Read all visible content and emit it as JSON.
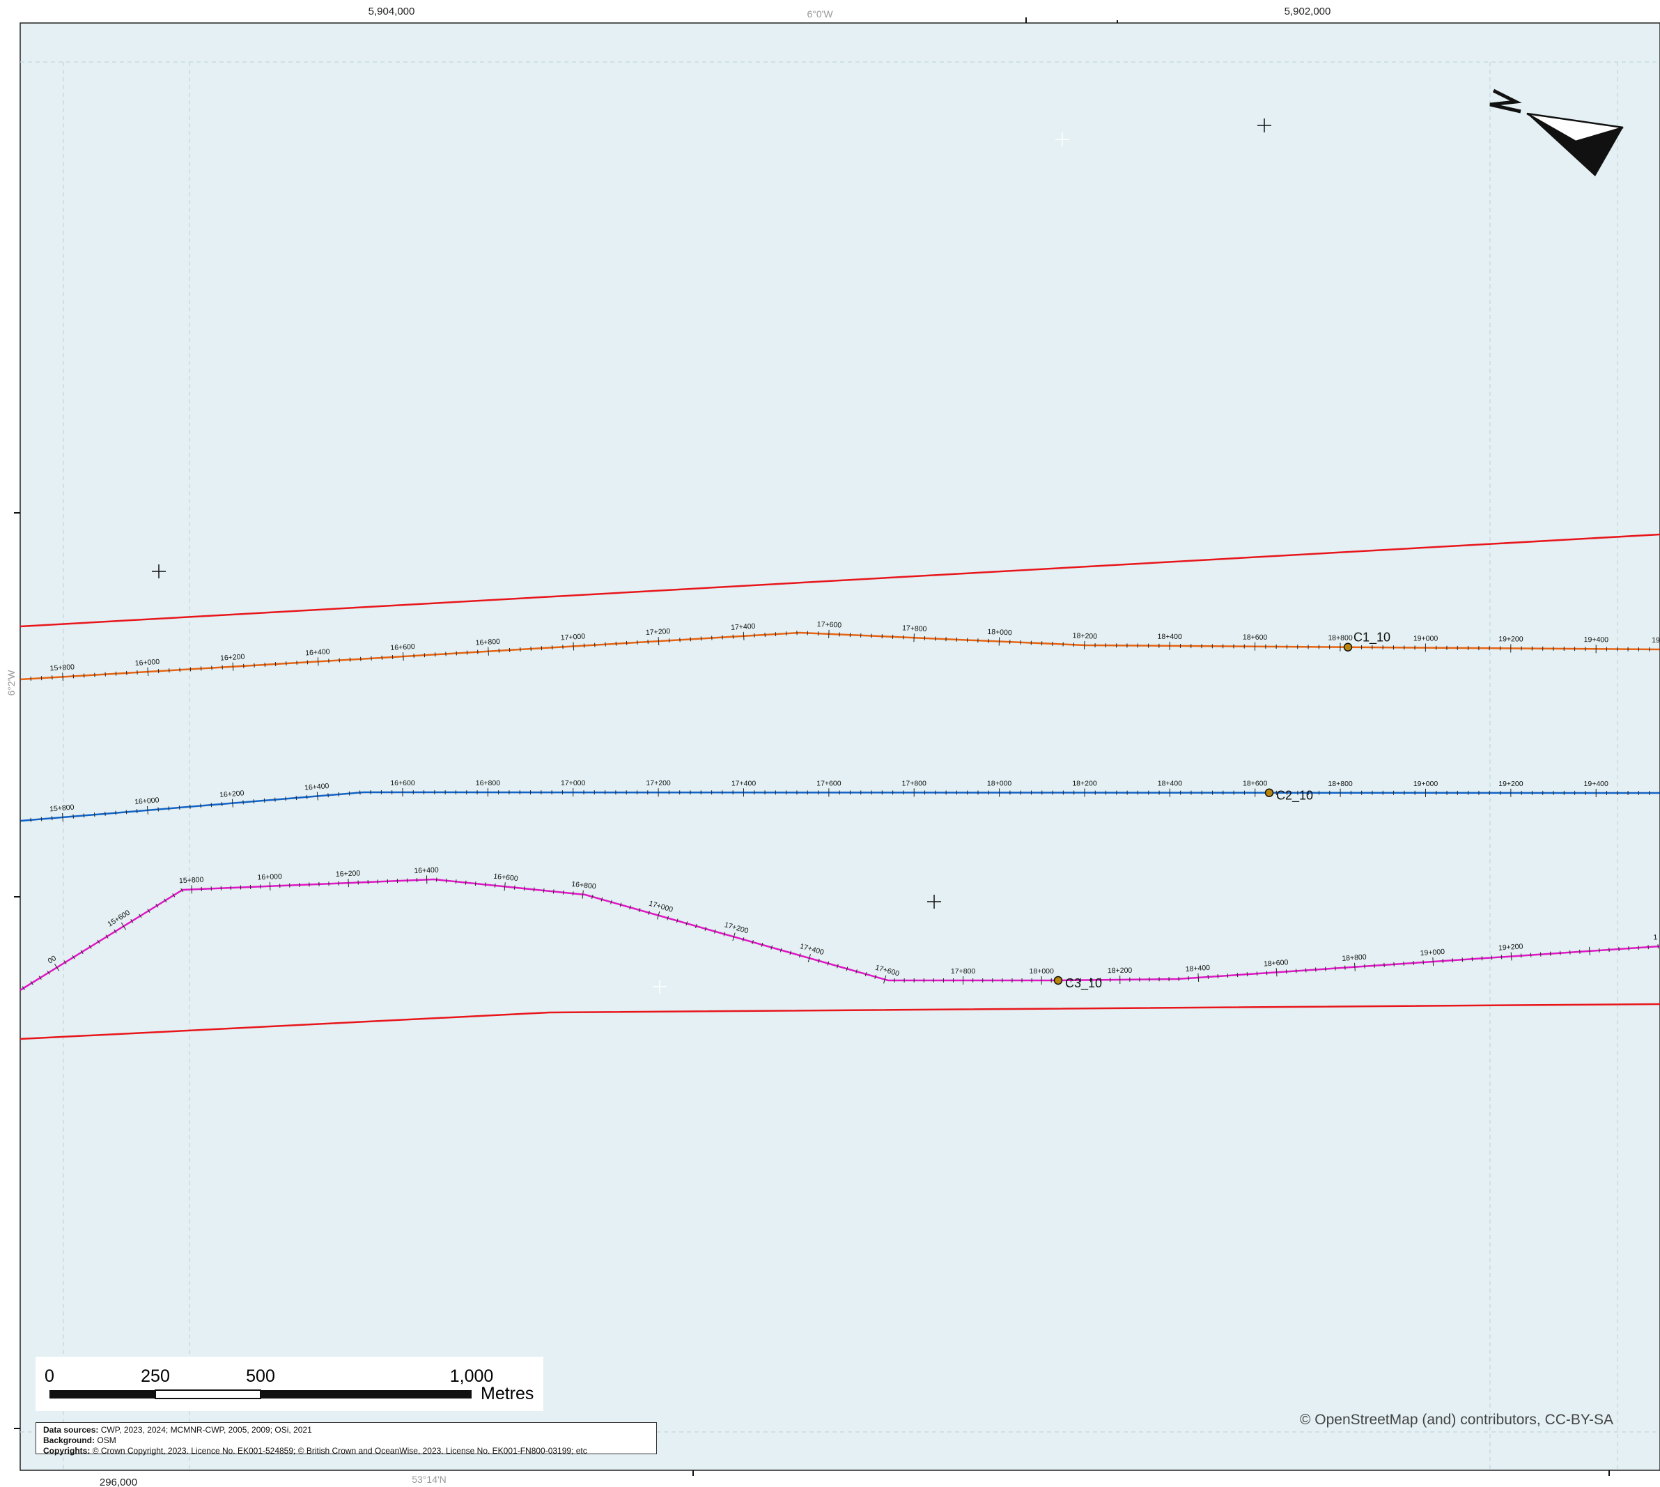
{
  "map": {
    "background_color": "#e4f0f3",
    "top_grid_labels": [
      "5,904,000",
      "5,902,000"
    ],
    "top_graticule_label": "6°0'W",
    "left_graticule_label": "6°2'W",
    "bottom_grid_label": "296,000",
    "bottom_graticule_label": "53°14'N",
    "attribution": "© OpenStreetMap (and) contributors, CC-BY-SA"
  },
  "boundary": {
    "color": "#e8151b"
  },
  "routes": [
    {
      "id": "c1",
      "color": "#e8630f",
      "point_label": "C1_10",
      "chainage_labels": [
        "15+800",
        "16+000",
        "16+200",
        "16+400",
        "16+600",
        "16+800",
        "17+000",
        "17+200",
        "17+400",
        "17+600",
        "17+800",
        "18+000",
        "18+200",
        "18+400",
        "18+600",
        "18+800",
        "19+000",
        "19+200",
        "19+400",
        "19"
      ]
    },
    {
      "id": "c2",
      "color": "#1063c8",
      "point_label": "C2_10",
      "chainage_labels": [
        "15+800",
        "16+000",
        "16+200",
        "16+400",
        "16+600",
        "16+800",
        "17+000",
        "17+200",
        "17+400",
        "17+600",
        "17+800",
        "18+000",
        "18+200",
        "18+400",
        "18+600",
        "18+800",
        "19+000",
        "19+200",
        "19+400"
      ]
    },
    {
      "id": "c3",
      "color": "#e016c6",
      "point_label": "C3_10",
      "chainage_labels": [
        "00",
        "15+600",
        "15+800",
        "16+000",
        "16+200",
        "16+400",
        "16+600",
        "16+800",
        "17+000",
        "17+200",
        "17+400",
        "17+600",
        "17+800",
        "18+000",
        "18+200",
        "18+400",
        "18+600",
        "18+800",
        "19+000",
        "19+200",
        "1"
      ]
    }
  ],
  "point_marker_color": "#b8860b",
  "north_arrow": {
    "letter": "N",
    "icon": "north-arrow-icon"
  },
  "scale_bar": {
    "labels": [
      "0",
      "250",
      "500",
      "1,000"
    ],
    "unit": "Metres"
  },
  "data_box": {
    "sources_label": "Data sources:",
    "sources_value": "CWP, 2023, 2024; MCMNR-CWP, 2005, 2009; OSi, 2021",
    "background_label": "Background:",
    "background_value": "OSM",
    "copyrights_label": "Copyrights:",
    "copyrights_value": "© Crown Copyright, 2023. Licence No. EK001-524859; © British Crown and OceanWise, 2023. License No. EK001-FN800-03199; etc"
  }
}
